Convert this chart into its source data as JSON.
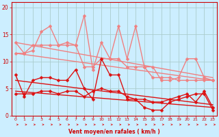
{
  "background_color": "#cceeff",
  "grid_color": "#aacccc",
  "xlabel": "Vent moyen/en rafales ( km/h )",
  "xlim": [
    -0.5,
    23.5
  ],
  "ylim": [
    0,
    21
  ],
  "yticks": [
    0,
    5,
    10,
    15,
    20
  ],
  "xticks": [
    0,
    1,
    2,
    3,
    4,
    5,
    6,
    7,
    8,
    9,
    10,
    11,
    12,
    13,
    14,
    15,
    16,
    17,
    18,
    19,
    20,
    21,
    22,
    23
  ],
  "series": [
    {
      "name": "light1",
      "x": [
        0,
        1,
        2,
        3,
        4,
        5,
        6,
        7,
        8,
        9,
        10,
        11,
        12,
        13,
        14,
        15,
        16,
        17,
        18,
        19,
        20,
        21,
        22,
        23
      ],
      "y": [
        13.5,
        11.5,
        12.0,
        15.5,
        16.5,
        13.0,
        13.5,
        13.0,
        18.5,
        8.5,
        13.5,
        10.5,
        16.5,
        10.5,
        16.5,
        9.0,
        9.0,
        6.5,
        6.5,
        7.0,
        10.5,
        10.5,
        7.0,
        6.5
      ],
      "color": "#f08080",
      "linewidth": 1.0,
      "marker": "D",
      "markersize": 2.5
    },
    {
      "name": "light2",
      "x": [
        0,
        1,
        2,
        3,
        4,
        5,
        6,
        7,
        8,
        9,
        10,
        11,
        12,
        13,
        14,
        15,
        16,
        17,
        18,
        19,
        20,
        21,
        22,
        23
      ],
      "y": [
        11.5,
        11.5,
        13.0,
        13.0,
        13.0,
        13.0,
        13.0,
        13.0,
        9.0,
        9.0,
        10.5,
        10.5,
        10.5,
        9.0,
        9.0,
        9.0,
        7.0,
        7.0,
        7.0,
        6.5,
        6.5,
        6.5,
        6.5,
        6.5
      ],
      "color": "#f08080",
      "linewidth": 1.0,
      "marker": "D",
      "markersize": 2.5
    },
    {
      "name": "trend_light1",
      "x": [
        0,
        23
      ],
      "y": [
        13.5,
        7.0
      ],
      "color": "#f08080",
      "linewidth": 1.0,
      "marker": null,
      "markersize": 0
    },
    {
      "name": "trend_light2",
      "x": [
        0,
        23
      ],
      "y": [
        11.5,
        6.5
      ],
      "color": "#f08080",
      "linewidth": 1.0,
      "marker": null,
      "markersize": 0
    },
    {
      "name": "dark1",
      "x": [
        0,
        1,
        2,
        3,
        4,
        5,
        6,
        7,
        8,
        9,
        10,
        11,
        12,
        13,
        14,
        15,
        16,
        17,
        18,
        19,
        20,
        21,
        22,
        23
      ],
      "y": [
        7.5,
        3.5,
        6.5,
        7.0,
        7.0,
        6.5,
        6.5,
        8.5,
        5.0,
        3.0,
        10.5,
        7.5,
        7.5,
        3.0,
        3.0,
        1.5,
        1.0,
        1.0,
        2.5,
        3.0,
        3.5,
        4.0,
        4.0,
        1.0
      ],
      "color": "#dd1111",
      "linewidth": 1.0,
      "marker": "D",
      "markersize": 2.5
    },
    {
      "name": "dark2",
      "x": [
        0,
        1,
        2,
        3,
        4,
        5,
        6,
        7,
        8,
        9,
        10,
        11,
        12,
        13,
        14,
        15,
        16,
        17,
        18,
        19,
        20,
        21,
        22,
        23
      ],
      "y": [
        4.0,
        4.0,
        4.0,
        4.5,
        4.5,
        4.0,
        4.5,
        4.5,
        3.5,
        4.5,
        5.0,
        4.5,
        4.5,
        3.5,
        3.0,
        3.0,
        2.5,
        2.5,
        3.0,
        3.5,
        4.0,
        2.5,
        4.5,
        1.5
      ],
      "color": "#dd1111",
      "linewidth": 1.0,
      "marker": "D",
      "markersize": 2.5
    },
    {
      "name": "trend_dark1",
      "x": [
        0,
        23
      ],
      "y": [
        6.5,
        2.0
      ],
      "color": "#dd1111",
      "linewidth": 1.0,
      "marker": null,
      "markersize": 0
    },
    {
      "name": "trend_dark2",
      "x": [
        0,
        23
      ],
      "y": [
        4.5,
        1.5
      ],
      "color": "#dd1111",
      "linewidth": 1.0,
      "marker": null,
      "markersize": 0
    }
  ],
  "arrow_color": "#dd1111",
  "xlabel_color": "#cc0000",
  "tick_color": "#cc0000",
  "spine_color": "#cc0000"
}
